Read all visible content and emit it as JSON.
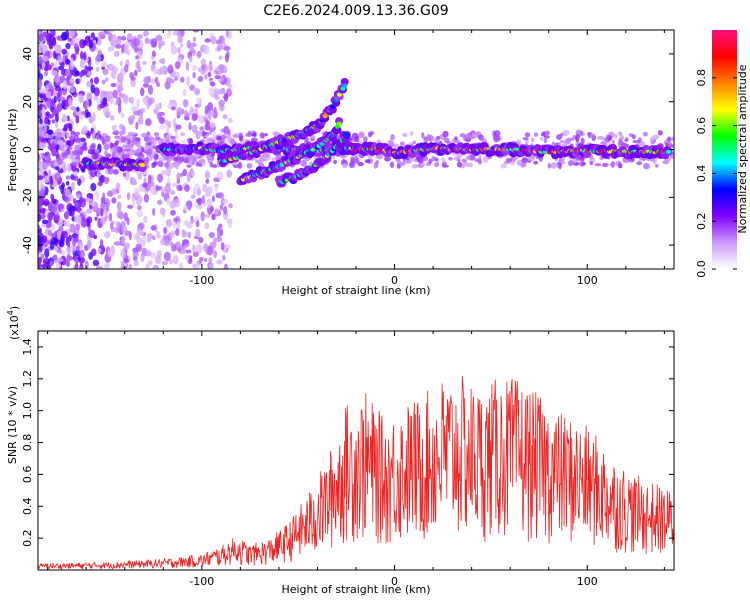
{
  "title": "C2E6.2024.009.13.36.G09",
  "chart_data": [
    {
      "type": "heatmap",
      "xlabel": "Height of straight line (km)",
      "ylabel": "Frequency (Hz)",
      "xlim": [
        -185,
        145
      ],
      "ylim": [
        -50,
        50
      ],
      "xticks": [
        -100,
        0,
        100
      ],
      "yticks": [
        -40,
        -20,
        0,
        20,
        40
      ],
      "colorbar": {
        "label": "Normalized spectral amplitude",
        "range": [
          0,
          1
        ],
        "ticks": [
          "0.0",
          "0.2",
          "0.4",
          "0.6",
          "0.8"
        ],
        "tick_values": [
          0,
          0.2,
          0.4,
          0.6,
          0.8
        ],
        "colors": [
          "#ffffff",
          "#cc99ff",
          "#8000ff",
          "#0000ff",
          "#00ffff",
          "#00ff00",
          "#ffff00",
          "#ff8000",
          "#ff0000",
          "#ff1080"
        ]
      },
      "ridges": [
        {
          "x": [
            -162,
            -145,
            -130
          ],
          "y": [
            -6,
            -6,
            -6.5
          ],
          "amp": 0.55
        },
        {
          "x": [
            -122,
            -110,
            -100,
            -90,
            -80,
            -70,
            -60,
            -50,
            -40,
            -30,
            -20
          ],
          "y": [
            0,
            0,
            0.5,
            -0.5,
            0,
            1,
            0.5,
            0,
            -0.5,
            0,
            0.5
          ],
          "amp": 0.5
        },
        {
          "x": [
            -90,
            -80,
            -70,
            -60,
            -50,
            -40,
            -32,
            -25
          ],
          "y": [
            -5,
            -3,
            0,
            3,
            6,
            10,
            18,
            28
          ],
          "amp": 0.55
        },
        {
          "x": [
            -80,
            -70,
            -60,
            -50,
            -40,
            -32,
            -28
          ],
          "y": [
            -13,
            -10,
            -7,
            -3,
            1,
            6,
            12
          ],
          "amp": 0.5
        },
        {
          "x": [
            -60,
            -50,
            -40,
            -34,
            -28,
            -24
          ],
          "y": [
            -14,
            -11,
            -6,
            -2,
            3,
            7
          ],
          "amp": 0.5
        },
        {
          "x": [
            -20,
            -10,
            0,
            10,
            20,
            40,
            60,
            80,
            100,
            120,
            143
          ],
          "y": [
            0,
            0.5,
            -1.5,
            -0.5,
            0.5,
            0,
            0,
            -1,
            -0.5,
            -1,
            -1
          ],
          "amp": 0.7
        }
      ]
    },
    {
      "type": "line",
      "xlabel": "Height of straight line (km)",
      "ylabel": "SNR (10 * v/v)",
      "yscale_label": "(x10",
      "yscale_exp": "4",
      "yscale_close": ")",
      "xlim": [
        -185,
        145
      ],
      "ylim": [
        0,
        1.5
      ],
      "xticks": [
        -100,
        0,
        100
      ],
      "yticks": [
        0.2,
        0.4,
        0.6,
        0.8,
        1.0,
        1.2,
        1.4
      ],
      "ytick_labels": [
        "0.2",
        "0.4",
        "0.6",
        "0.8",
        "1.0",
        "1.2",
        "1.4"
      ],
      "color": "#ee2222",
      "envelope_x": [
        -185,
        -150,
        -120,
        -100,
        -90,
        -82,
        -75,
        -65,
        -55,
        -45,
        -35,
        -25,
        -15,
        -5,
        5,
        15,
        25,
        35,
        45,
        55,
        65,
        75,
        85,
        95,
        105,
        115,
        125,
        135,
        145
      ],
      "envelope_y": [
        0.04,
        0.05,
        0.07,
        0.1,
        0.15,
        0.22,
        0.16,
        0.2,
        0.3,
        0.48,
        0.7,
        1.05,
        1.12,
        0.95,
        1.05,
        1.1,
        1.22,
        1.22,
        1.15,
        1.22,
        1.2,
        1.1,
        1.0,
        0.95,
        0.85,
        0.7,
        0.6,
        0.55,
        0.5
      ]
    }
  ]
}
